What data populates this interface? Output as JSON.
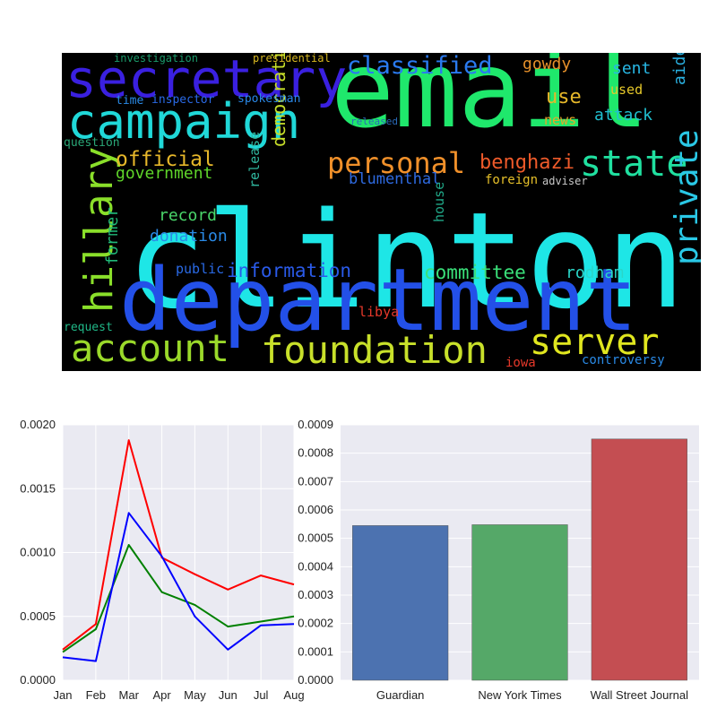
{
  "wordcloud": {
    "words": [
      {
        "text": "clinton",
        "color": "#1ee6e6"
      },
      {
        "text": "email",
        "color": "#1fe86c"
      },
      {
        "text": "department",
        "color": "#2350e8"
      },
      {
        "text": "secretary",
        "color": "#3a20e0"
      },
      {
        "text": "campaign",
        "color": "#20d8d8"
      },
      {
        "text": "hillary",
        "color": "#8adf2a"
      },
      {
        "text": "account",
        "color": "#9ad92a"
      },
      {
        "text": "foundation",
        "color": "#c8e02a"
      },
      {
        "text": "server",
        "color": "#e0e61f"
      },
      {
        "text": "state",
        "color": "#20e0a0"
      },
      {
        "text": "personal",
        "color": "#f0902a"
      },
      {
        "text": "classified",
        "color": "#2a7af0"
      },
      {
        "text": "official",
        "color": "#e6b72a"
      },
      {
        "text": "government",
        "color": "#5fd62a"
      },
      {
        "text": "benghazi",
        "color": "#ee5a2a"
      },
      {
        "text": "blumenthal",
        "color": "#2e6ae0"
      },
      {
        "text": "information",
        "color": "#2a5ae8"
      },
      {
        "text": "committee",
        "color": "#3ae07a"
      },
      {
        "text": "rodham",
        "color": "#2ad6c8"
      },
      {
        "text": "private",
        "color": "#2ac8e6"
      },
      {
        "text": "democratic",
        "color": "#c8e02a"
      },
      {
        "text": "record",
        "color": "#4ad66a"
      },
      {
        "text": "donation",
        "color": "#2a8ae6"
      },
      {
        "text": "former",
        "color": "#20b878"
      },
      {
        "text": "public",
        "color": "#2a6ae6"
      },
      {
        "text": "release",
        "color": "#30b8a0"
      },
      {
        "text": "house",
        "color": "#20a888"
      },
      {
        "text": "gowdy",
        "color": "#e6902a"
      },
      {
        "text": "use",
        "color": "#e6b82a"
      },
      {
        "text": "sent",
        "color": "#28b8e6"
      },
      {
        "text": "used",
        "color": "#e6c82a"
      },
      {
        "text": "attack",
        "color": "#20c0d0"
      },
      {
        "text": "aide",
        "color": "#2ab0e0"
      },
      {
        "text": "news",
        "color": "#e6a82a"
      },
      {
        "text": "foreign",
        "color": "#e6c02a"
      },
      {
        "text": "adviser",
        "color": "#c8c8c8"
      },
      {
        "text": "libya",
        "color": "#e6382a"
      },
      {
        "text": "iowa",
        "color": "#e6382a"
      },
      {
        "text": "controversy",
        "color": "#2a8ae6"
      },
      {
        "text": "investigation",
        "color": "#1a9a6a"
      },
      {
        "text": "presidential",
        "color": "#d8b820"
      },
      {
        "text": "time",
        "color": "#2a8ae6"
      },
      {
        "text": "inspector",
        "color": "#2a6ae6"
      },
      {
        "text": "spokesman",
        "color": "#2a88e6"
      },
      {
        "text": "question",
        "color": "#2aa878"
      },
      {
        "text": "released",
        "color": "#2a6ab8"
      },
      {
        "text": "request",
        "color": "#20b888"
      }
    ]
  },
  "chart_data": [
    {
      "type": "line",
      "x": [
        "Jan",
        "Feb",
        "Mar",
        "Apr",
        "May",
        "Jun",
        "Jul",
        "Aug"
      ],
      "ylim": [
        0,
        0.002
      ],
      "yticks": [
        "0.0000",
        "0.0005",
        "0.0010",
        "0.0015",
        "0.0020"
      ],
      "grid": true,
      "series": [
        {
          "color": "#ff0000",
          "values": [
            0.00024,
            0.00044,
            0.00188,
            0.00096,
            0.00083,
            0.00071,
            0.00082,
            0.00075
          ]
        },
        {
          "color": "#008000",
          "values": [
            0.00022,
            0.0004,
            0.00106,
            0.00069,
            0.00059,
            0.00042,
            0.00046,
            0.0005
          ]
        },
        {
          "color": "#0000ff",
          "values": [
            0.00018,
            0.00015,
            0.00131,
            0.00097,
            0.0005,
            0.00024,
            0.00043,
            0.00044
          ]
        }
      ]
    },
    {
      "type": "bar",
      "categories": [
        "Guardian",
        "New York Times",
        "Wall Street Journal"
      ],
      "values": [
        0.000545,
        0.000548,
        0.00085
      ],
      "colors": [
        "#4c72b0",
        "#55a868",
        "#c44e52"
      ],
      "ylim": [
        0,
        0.0009
      ],
      "yticks": [
        "0.0000",
        "0.0001",
        "0.0002",
        "0.0003",
        "0.0004",
        "0.0005",
        "0.0006",
        "0.0007",
        "0.0008",
        "0.0009"
      ],
      "grid": true
    }
  ]
}
